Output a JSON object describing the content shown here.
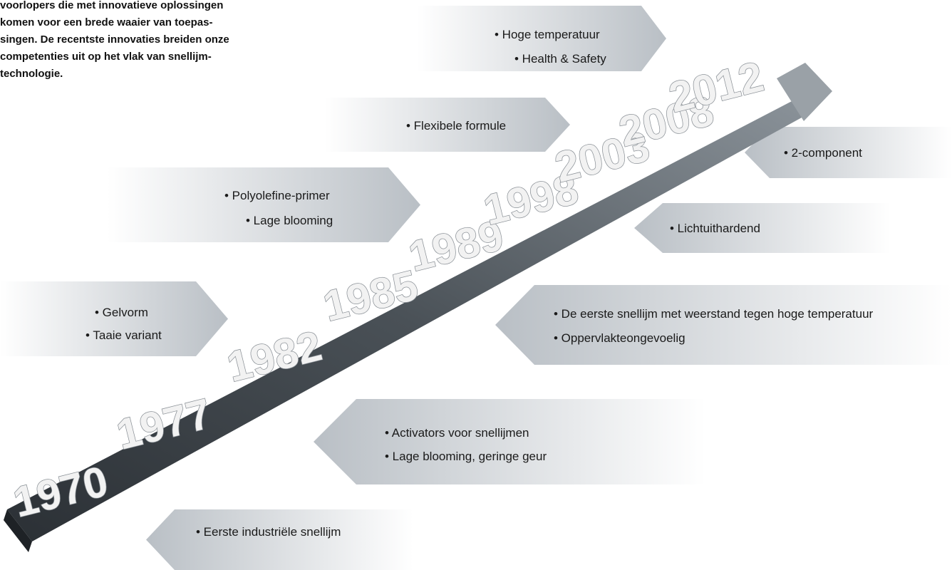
{
  "intro": {
    "lines": [
      "voorlopers die met innovatieve oplossingen",
      "komen voor een brede waaier van toepas-",
      "singen. De recentste innovaties breiden onze",
      "competenties uit op het vlak van snellijm-",
      "technologie."
    ]
  },
  "years": [
    "1970",
    "1977",
    "1982",
    "1985",
    "1989",
    "1998",
    "2003",
    "2008",
    "2012"
  ],
  "callouts": [
    {
      "items": [
        "• Hoge temperatuur",
        "• Health & Safety"
      ]
    },
    {
      "items": [
        "• Flexibele formule"
      ]
    },
    {
      "items": [
        "• 2-component"
      ]
    },
    {
      "items": [
        "• Polyolefine-primer",
        "• Lage blooming"
      ]
    },
    {
      "items": [
        "• Lichtuithardend"
      ]
    },
    {
      "items": [
        "• Gelvorm",
        "• Taaie variant"
      ]
    },
    {
      "items": [
        "• De eerste snellijm met weerstand tegen hoge temperatuur",
        "• Oppervlakteongevoelig"
      ]
    },
    {
      "items": [
        "• Activators voor snellijmen",
        "• Lage blooming, geringe geur"
      ]
    },
    {
      "items": [
        "• Eerste industriële snellijm"
      ]
    }
  ]
}
